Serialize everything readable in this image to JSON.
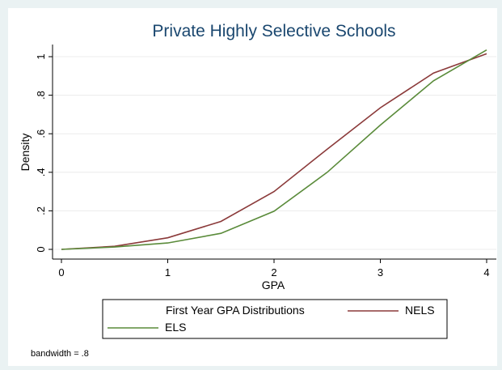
{
  "chart_data": {
    "type": "line",
    "title": "Private Highly Selective Schools",
    "xlabel": "GPA",
    "ylabel": "Density",
    "xlim": [
      0,
      4
    ],
    "ylim": [
      0,
      1.04
    ],
    "x_ticks": [
      0,
      1,
      2,
      3,
      4
    ],
    "x_tick_labels": [
      "0",
      "1",
      "2",
      "3",
      "4"
    ],
    "y_ticks": [
      0,
      0.2,
      0.4,
      0.6,
      0.8,
      1
    ],
    "y_tick_labels": [
      "0",
      ".2",
      ".4",
      ".6",
      ".8",
      "1"
    ],
    "grid": true,
    "legend": {
      "title": "First Year GPA Distributions",
      "placement": "bottom"
    },
    "note": "bandwidth = .8",
    "series": [
      {
        "name": "NELS",
        "color": "#8b3a3a",
        "x": [
          0,
          0.5,
          1,
          1.5,
          2,
          2.5,
          3,
          3.5,
          4
        ],
        "y": [
          0,
          0.016,
          0.06,
          0.145,
          0.3,
          0.52,
          0.735,
          0.915,
          1.015
        ]
      },
      {
        "name": "ELS",
        "color": "#5a8b3a",
        "x": [
          0,
          0.5,
          1,
          1.5,
          2,
          2.5,
          3,
          3.5,
          4
        ],
        "y": [
          0,
          0.012,
          0.033,
          0.083,
          0.198,
          0.4,
          0.645,
          0.875,
          1.035
        ]
      }
    ]
  }
}
